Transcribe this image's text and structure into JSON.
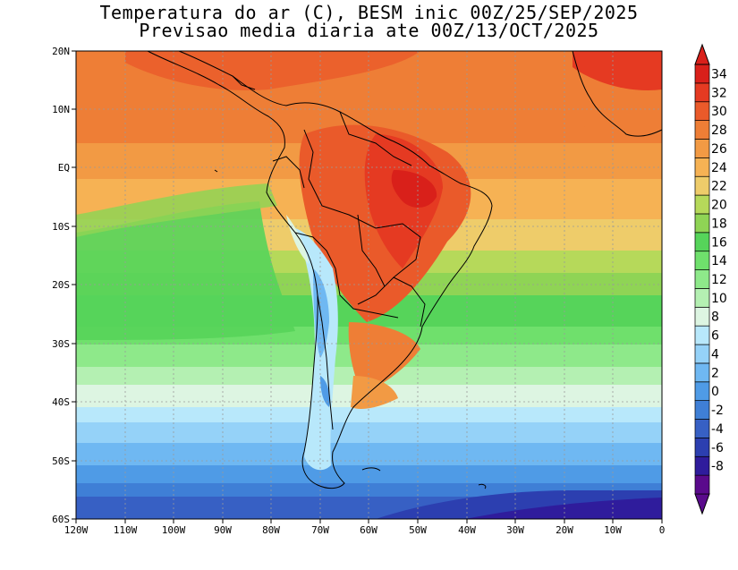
{
  "title": {
    "line1": "Temperatura do ar (C), BESM inic 00Z/25/SEP/2025",
    "line2": "Previsao media diaria ate 00Z/13/OCT/2025"
  },
  "axes": {
    "lat_labels": [
      "20N",
      "10N",
      "EQ",
      "10S",
      "20S",
      "30S",
      "40S",
      "50S",
      "60S"
    ],
    "lon_labels": [
      "120W",
      "110W",
      "100W",
      "90W",
      "80W",
      "70W",
      "60W",
      "50W",
      "40W",
      "30W",
      "20W",
      "10W",
      "0"
    ],
    "lat_range": [
      -60,
      20
    ],
    "lon_range": [
      -120,
      0
    ]
  },
  "colorbar": {
    "labels": [
      "34",
      "32",
      "30",
      "28",
      "26",
      "24",
      "22",
      "20",
      "18",
      "16",
      "14",
      "12",
      "10",
      "8",
      "6",
      "4",
      "2",
      "0",
      "-2",
      "-4",
      "-6",
      "-8"
    ],
    "colors": [
      "#5a0a8c",
      "#2f1c9c",
      "#2c3fb0",
      "#3760c4",
      "#3f7fd6",
      "#4f9be6",
      "#6fb8f2",
      "#95d2f8",
      "#b8e8fb",
      "#ddf5e2",
      "#b4f0b2",
      "#8ee98a",
      "#6fe06c",
      "#56d45a",
      "#8fd455",
      "#b6d95a",
      "#eecc6a",
      "#f6b254",
      "#f29a44",
      "#ee7e36",
      "#ea5a2a",
      "#e53a22",
      "#d9201a"
    ]
  }
}
